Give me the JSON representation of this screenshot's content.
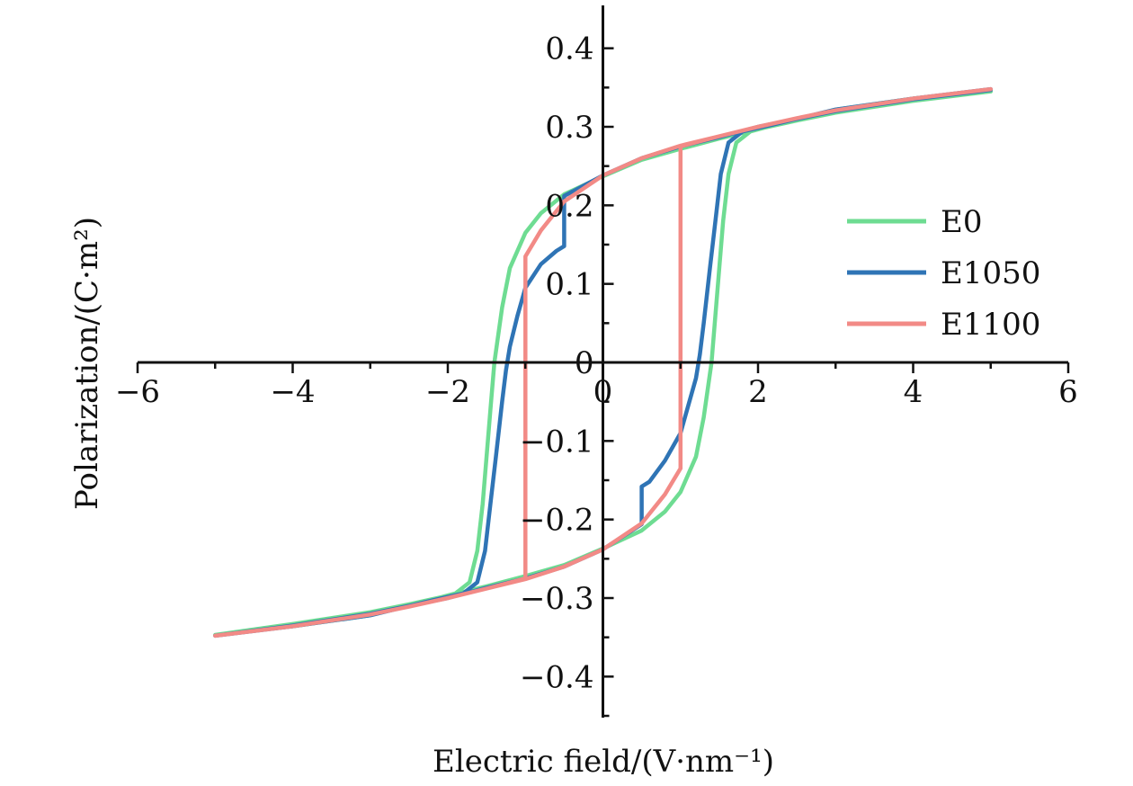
{
  "chart_data": {
    "type": "line",
    "xlabel": "Electric field/(V·nm⁻¹)",
    "ylabel": "Polarization/(C·m²)",
    "xlim": [
      -6,
      6
    ],
    "ylim": [
      -0.45,
      0.45
    ],
    "x_ticks": [
      -6,
      -4,
      -2,
      0,
      2,
      4,
      6
    ],
    "x_tick_labels": [
      "−6",
      "−4",
      "−2",
      "0",
      "2",
      "4",
      "6"
    ],
    "y_ticks": [
      -0.4,
      -0.3,
      -0.2,
      -0.1,
      0,
      0.1,
      0.2,
      0.3,
      0.4
    ],
    "y_tick_labels": [
      "−0.4",
      "−0.3",
      "−0.2",
      "−0.1",
      "0",
      "0.1",
      "0.2",
      "0.3",
      "0.4"
    ],
    "axes_style": "centered at origin",
    "grid": false,
    "legend_position": "right",
    "series": [
      {
        "name": "E0",
        "color": "#6EDC92",
        "points": [
          [
            5.0,
            0.345
          ],
          [
            4.0,
            0.333
          ],
          [
            3.0,
            0.318
          ],
          [
            2.5,
            0.308
          ],
          [
            2.0,
            0.297
          ],
          [
            1.5,
            0.285
          ],
          [
            1.0,
            0.272
          ],
          [
            0.5,
            0.258
          ],
          [
            0.0,
            0.237
          ],
          [
            -0.5,
            0.214
          ],
          [
            -0.8,
            0.19
          ],
          [
            -1.0,
            0.165
          ],
          [
            -1.2,
            0.12
          ],
          [
            -1.3,
            0.07
          ],
          [
            -1.4,
            0.0
          ],
          [
            -1.45,
            -0.06
          ],
          [
            -1.5,
            -0.12
          ],
          [
            -1.55,
            -0.18
          ],
          [
            -1.62,
            -0.24
          ],
          [
            -1.72,
            -0.28
          ],
          [
            -1.9,
            -0.294
          ],
          [
            -2.2,
            -0.302
          ],
          [
            -3.0,
            -0.322
          ],
          [
            -4.0,
            -0.336
          ],
          [
            -5.0,
            -0.347
          ],
          [
            -4.0,
            -0.333
          ],
          [
            -3.0,
            -0.318
          ],
          [
            -2.5,
            -0.308
          ],
          [
            -2.0,
            -0.297
          ],
          [
            -1.5,
            -0.285
          ],
          [
            -1.0,
            -0.272
          ],
          [
            -0.5,
            -0.258
          ],
          [
            0.0,
            -0.237
          ],
          [
            0.5,
            -0.214
          ],
          [
            0.8,
            -0.19
          ],
          [
            1.0,
            -0.165
          ],
          [
            1.2,
            -0.12
          ],
          [
            1.3,
            -0.07
          ],
          [
            1.4,
            0.0
          ],
          [
            1.45,
            0.06
          ],
          [
            1.5,
            0.12
          ],
          [
            1.55,
            0.18
          ],
          [
            1.62,
            0.24
          ],
          [
            1.72,
            0.28
          ],
          [
            1.9,
            0.294
          ],
          [
            2.2,
            0.302
          ],
          [
            3.0,
            0.322
          ],
          [
            4.0,
            0.336
          ],
          [
            5.0,
            0.347
          ]
        ]
      },
      {
        "name": "E1050",
        "color": "#2F74B5",
        "points": [
          [
            5.0,
            0.347
          ],
          [
            4.0,
            0.335
          ],
          [
            3.0,
            0.32
          ],
          [
            2.5,
            0.31
          ],
          [
            2.0,
            0.3
          ],
          [
            1.5,
            0.287
          ],
          [
            1.0,
            0.275
          ],
          [
            0.5,
            0.26
          ],
          [
            0.0,
            0.238
          ],
          [
            -0.5,
            0.212
          ],
          [
            -0.5,
            0.148
          ],
          [
            -0.6,
            0.142
          ],
          [
            -0.8,
            0.125
          ],
          [
            -1.0,
            0.095
          ],
          [
            -1.1,
            0.06
          ],
          [
            -1.2,
            0.02
          ],
          [
            -1.25,
            -0.01
          ],
          [
            -1.3,
            -0.05
          ],
          [
            -1.38,
            -0.12
          ],
          [
            -1.45,
            -0.18
          ],
          [
            -1.52,
            -0.24
          ],
          [
            -1.62,
            -0.28
          ],
          [
            -1.8,
            -0.294
          ],
          [
            -2.2,
            -0.303
          ],
          [
            -3.0,
            -0.322
          ],
          [
            -4.0,
            -0.336
          ],
          [
            -5.0,
            -0.348
          ],
          [
            -4.0,
            -0.335
          ],
          [
            -3.0,
            -0.32
          ],
          [
            -2.5,
            -0.31
          ],
          [
            -2.0,
            -0.3
          ],
          [
            -1.5,
            -0.287
          ],
          [
            -1.0,
            -0.275
          ],
          [
            -0.5,
            -0.26
          ],
          [
            0.0,
            -0.238
          ],
          [
            0.5,
            -0.206
          ],
          [
            0.5,
            -0.158
          ],
          [
            0.6,
            -0.152
          ],
          [
            0.8,
            -0.125
          ],
          [
            1.0,
            -0.09
          ],
          [
            1.1,
            -0.055
          ],
          [
            1.2,
            -0.02
          ],
          [
            1.25,
            0.01
          ],
          [
            1.3,
            0.05
          ],
          [
            1.38,
            0.12
          ],
          [
            1.45,
            0.18
          ],
          [
            1.52,
            0.24
          ],
          [
            1.62,
            0.28
          ],
          [
            1.8,
            0.294
          ],
          [
            2.2,
            0.303
          ],
          [
            3.0,
            0.322
          ],
          [
            4.0,
            0.336
          ],
          [
            5.0,
            0.348
          ]
        ]
      },
      {
        "name": "E1100",
        "color": "#F28A86",
        "points": [
          [
            5.0,
            0.348
          ],
          [
            4.0,
            0.336
          ],
          [
            3.0,
            0.321
          ],
          [
            2.5,
            0.311
          ],
          [
            2.0,
            0.3
          ],
          [
            1.5,
            0.288
          ],
          [
            1.0,
            0.276
          ],
          [
            0.5,
            0.26
          ],
          [
            0.0,
            0.238
          ],
          [
            -0.5,
            0.205
          ],
          [
            -0.8,
            0.168
          ],
          [
            -1.0,
            0.135
          ],
          [
            -1.0,
            -0.275
          ],
          [
            -1.5,
            -0.288
          ],
          [
            -2.0,
            -0.3
          ],
          [
            -2.5,
            -0.311
          ],
          [
            -3.0,
            -0.321
          ],
          [
            -4.0,
            -0.336
          ],
          [
            -5.0,
            -0.348
          ],
          [
            -4.0,
            -0.336
          ],
          [
            -3.0,
            -0.321
          ],
          [
            -2.5,
            -0.311
          ],
          [
            -2.0,
            -0.3
          ],
          [
            -1.5,
            -0.288
          ],
          [
            -1.0,
            -0.276
          ],
          [
            -0.5,
            -0.26
          ],
          [
            0.0,
            -0.238
          ],
          [
            0.5,
            -0.205
          ],
          [
            0.8,
            -0.168
          ],
          [
            1.0,
            -0.135
          ],
          [
            1.0,
            0.275
          ],
          [
            1.5,
            0.288
          ],
          [
            2.0,
            0.3
          ],
          [
            2.5,
            0.311
          ],
          [
            3.0,
            0.321
          ],
          [
            4.0,
            0.336
          ],
          [
            5.0,
            0.348
          ]
        ]
      }
    ]
  }
}
